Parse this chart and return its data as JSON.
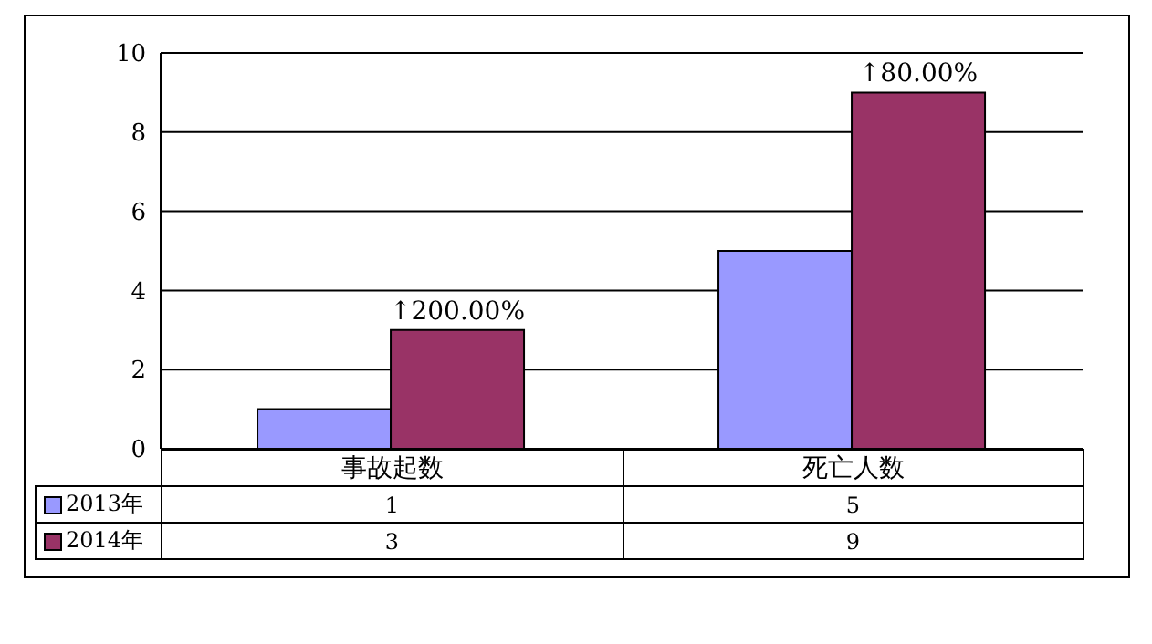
{
  "chart_data": {
    "type": "bar",
    "categories": [
      "事故起数",
      "死亡人数"
    ],
    "series": [
      {
        "name": "2013年",
        "color": "#9999ff",
        "values": [
          1,
          5
        ]
      },
      {
        "name": "2014年",
        "color": "#993366",
        "values": [
          3,
          9
        ]
      }
    ],
    "ylim": [
      0,
      10
    ],
    "yticks": [
      0,
      2,
      4,
      6,
      8,
      10
    ],
    "grid": "y",
    "legend": "bottom left",
    "data_labels": true,
    "annotations": [
      {
        "text": "↑200.00%",
        "x": "事故起数",
        "y": 3
      },
      {
        "text": "↑80.00%",
        "x": "死亡人数",
        "y": 9
      }
    ]
  }
}
